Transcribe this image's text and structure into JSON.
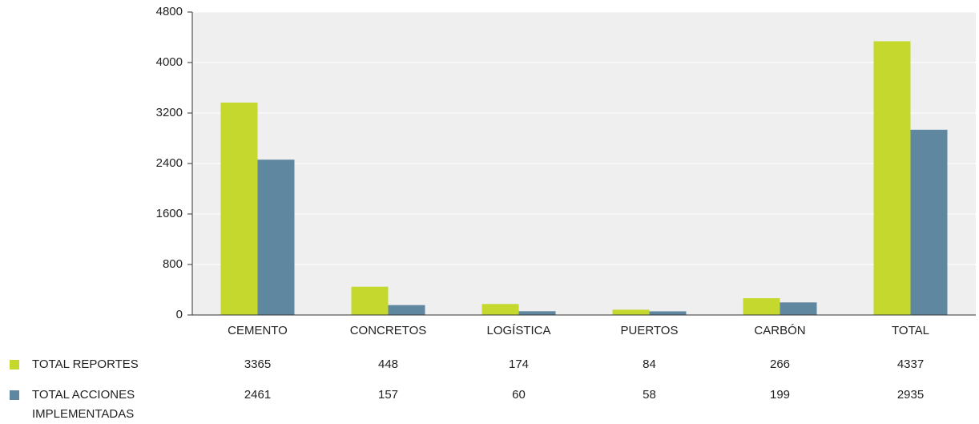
{
  "chart_data": {
    "type": "bar",
    "categories": [
      "CEMENTO",
      "CONCRETOS",
      "LOGÍSTICA",
      "PUERTOS",
      "CARBÓN",
      "TOTAL"
    ],
    "series": [
      {
        "name": "TOTAL REPORTES",
        "color": "#c5d82e",
        "values": [
          3365,
          448,
          174,
          84,
          266,
          4337
        ]
      },
      {
        "name": "TOTAL ACCIONES IMPLEMENTADAS",
        "color": "#5f87a0",
        "values": [
          2461,
          157,
          60,
          58,
          199,
          2935
        ]
      }
    ],
    "ylim": [
      0,
      4800
    ],
    "yticks": [
      0,
      800,
      1600,
      2400,
      3200,
      4000,
      4800
    ],
    "grid": true
  }
}
